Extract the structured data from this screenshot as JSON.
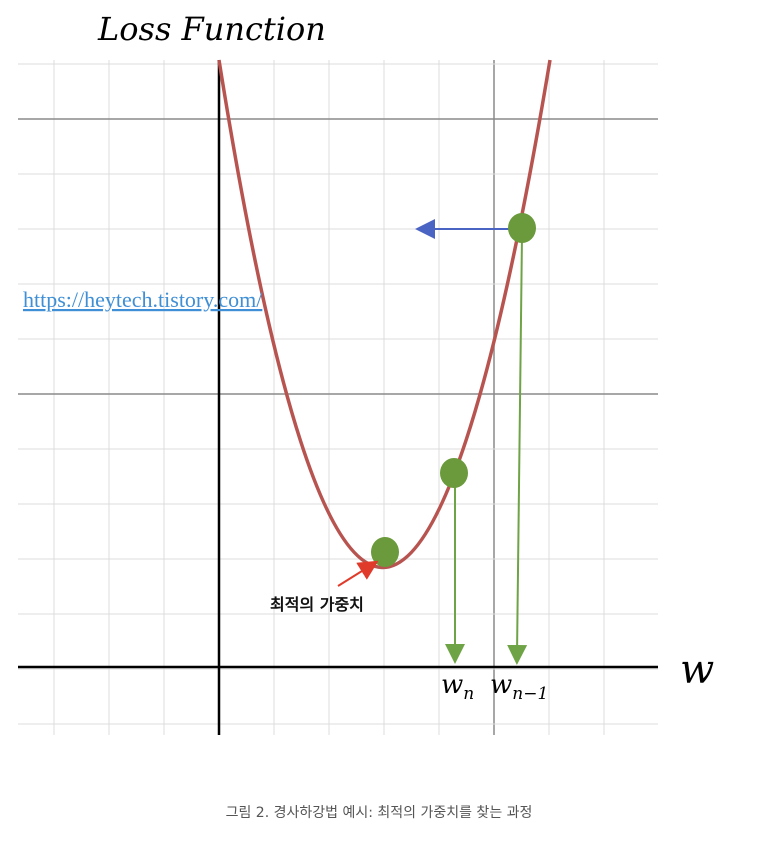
{
  "figure": {
    "title": "Loss Function",
    "axis_label": "w",
    "url": "https://heytech.tistory.com/",
    "optimal_label": "최적의 가중치",
    "w_n": {
      "base": "w",
      "sub": "n"
    },
    "w_n_minus_1": {
      "base": "w",
      "sub": "n−1"
    },
    "caption": "그림 2. 경사하강법 예시: 최적의 가중치를 찾는 과정",
    "colors": {
      "curve": "#b85450",
      "point": "#6a9a3b",
      "drop_arrow": "#6ea346",
      "step_arrow": "#4a64c4",
      "pointer_arrow": "#e03a2a",
      "grid_minor": "#dcdcdc",
      "grid_major": "#8a8a8a",
      "axis": "#000000"
    }
  }
}
